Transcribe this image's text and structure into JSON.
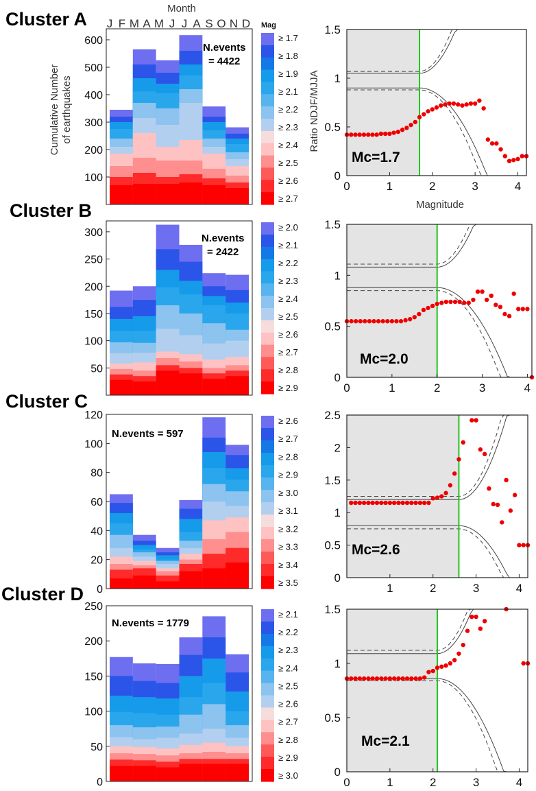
{
  "month_axis_title": "Month",
  "month_letters": [
    "J",
    "F",
    "M",
    "A",
    "M",
    "J",
    "J",
    "A",
    "S",
    "O",
    "N",
    "D"
  ],
  "y_axis_label_line1": "Cumulative Number",
  "y_axis_label_line2": "of earthquakes",
  "ratio_axis_label": "Ratio NDJF/MJJA",
  "magnitude_axis_label": "Magnitude",
  "colorbar_title": "Mag",
  "palette": [
    "#ff0000",
    "#ff2a2a",
    "#ff5a5a",
    "#ff8e8e",
    "#ffc2c2",
    "#f7dcdc",
    "#b3cff0",
    "#8cc3ef",
    "#58b4ee",
    "#2aa7ec",
    "#159bea",
    "#1478e6",
    "#2a55e8",
    "#6e6ef0"
  ],
  "chart_data": [
    {
      "id": "A",
      "type": "bar",
      "stacked": true,
      "title": "Cluster A",
      "categories": [
        "JF",
        "MA",
        "MJ",
        "JA",
        "SO",
        "ND"
      ],
      "n_events_label": "N.events\n= 4422",
      "ylim": [
        0,
        640
      ],
      "yticks": [
        100,
        200,
        300,
        400,
        500,
        600
      ],
      "mag_levels": [
        "≥ 1.7",
        "≥ 1.8",
        "≥ 1.9",
        "≥ 2.1",
        "≥ 2.2",
        "≥ 2.3",
        "≥ 2.4",
        "≥ 2.5",
        "≥ 2.6",
        "≥ 2.7"
      ],
      "cumulative": [
        [
          345,
          565,
          525,
          617,
          357,
          281
        ],
        [
          320,
          510,
          480,
          560,
          320,
          258
        ],
        [
          300,
          460,
          440,
          510,
          300,
          240
        ],
        [
          275,
          412,
          405,
          470,
          270,
          220
        ],
        [
          240,
          370,
          350,
          420,
          240,
          190
        ],
        [
          210,
          315,
          290,
          370,
          210,
          165
        ],
        [
          185,
          260,
          210,
          235,
          185,
          140
        ],
        [
          140,
          170,
          160,
          160,
          130,
          105
        ],
        [
          100,
          115,
          100,
          110,
          95,
          80
        ],
        [
          70,
          75,
          75,
          80,
          70,
          60
        ]
      ],
      "ratio": {
        "mc_label": "Mc=1.7",
        "mc": 1.7,
        "xlim": [
          0,
          4.2
        ],
        "ylim": [
          0,
          1.5
        ],
        "xticks": [
          0,
          1,
          2,
          3,
          4
        ],
        "yticks": [
          0,
          0.5,
          1,
          1.5
        ],
        "conf_upper_solid": 1.05,
        "conf_upper_dashed": 1.07,
        "conf_lower_solid": 0.9,
        "conf_lower_dashed": 0.88,
        "points": [
          [
            0,
            0.42
          ],
          [
            0.1,
            0.42
          ],
          [
            0.2,
            0.42
          ],
          [
            0.3,
            0.42
          ],
          [
            0.4,
            0.42
          ],
          [
            0.5,
            0.42
          ],
          [
            0.6,
            0.42
          ],
          [
            0.7,
            0.42
          ],
          [
            0.8,
            0.43
          ],
          [
            0.9,
            0.43
          ],
          [
            1.0,
            0.43
          ],
          [
            1.1,
            0.44
          ],
          [
            1.2,
            0.45
          ],
          [
            1.3,
            0.47
          ],
          [
            1.4,
            0.49
          ],
          [
            1.5,
            0.52
          ],
          [
            1.6,
            0.55
          ],
          [
            1.7,
            0.6
          ],
          [
            1.8,
            0.63
          ],
          [
            1.9,
            0.66
          ],
          [
            2.0,
            0.68
          ],
          [
            2.1,
            0.7
          ],
          [
            2.2,
            0.72
          ],
          [
            2.3,
            0.73
          ],
          [
            2.4,
            0.74
          ],
          [
            2.5,
            0.74
          ],
          [
            2.6,
            0.73
          ],
          [
            2.7,
            0.72
          ],
          [
            2.8,
            0.73
          ],
          [
            2.9,
            0.74
          ],
          [
            3.0,
            0.74
          ],
          [
            3.1,
            0.77
          ],
          [
            3.2,
            0.69
          ],
          [
            3.3,
            0.37
          ],
          [
            3.4,
            0.33
          ],
          [
            3.5,
            0.33
          ],
          [
            3.6,
            0.27
          ],
          [
            3.7,
            0.2
          ],
          [
            3.8,
            0.15
          ],
          [
            3.9,
            0.16
          ],
          [
            4.0,
            0.17
          ],
          [
            4.1,
            0.2
          ],
          [
            4.2,
            0.2
          ]
        ]
      }
    },
    {
      "id": "B",
      "type": "bar",
      "stacked": true,
      "title": "Cluster B",
      "categories": [
        "JF",
        "MA",
        "MJ",
        "JA",
        "SO",
        "ND"
      ],
      "n_events_label": "N.events\n= 2422",
      "ylim": [
        0,
        320
      ],
      "yticks": [
        50,
        100,
        150,
        200,
        250,
        300
      ],
      "mag_levels": [
        "≥ 2.0",
        "≥ 2.1",
        "≥ 2.2",
        "≥ 2.3",
        "≥ 2.4",
        "≥ 2.5",
        "≥ 2.6",
        "≥ 2.7",
        "≥ 2.8",
        "≥ 2.9"
      ],
      "cumulative": [
        [
          192,
          200,
          313,
          276,
          224,
          221
        ],
        [
          162,
          175,
          268,
          245,
          200,
          193
        ],
        [
          140,
          145,
          230,
          210,
          182,
          170
        ],
        [
          118,
          118,
          198,
          185,
          165,
          150
        ],
        [
          97,
          96,
          165,
          150,
          132,
          120
        ],
        [
          77,
          78,
          122,
          110,
          95,
          100
        ],
        [
          58,
          60,
          80,
          75,
          65,
          70
        ],
        [
          48,
          45,
          68,
          62,
          50,
          55
        ],
        [
          38,
          35,
          55,
          50,
          40,
          45
        ],
        [
          28,
          25,
          45,
          40,
          30,
          35
        ]
      ],
      "ratio": {
        "mc_label": "Mc=2.0",
        "mc": 2.0,
        "xlim": [
          0,
          4.1
        ],
        "ylim": [
          0,
          1.5
        ],
        "xticks": [
          0,
          1,
          2,
          3,
          4
        ],
        "yticks": [
          0,
          0.5,
          1,
          1.5
        ],
        "conf_upper_solid": 1.08,
        "conf_upper_dashed": 1.11,
        "conf_lower_solid": 0.88,
        "conf_lower_dashed": 0.85,
        "points": [
          [
            0,
            0.55
          ],
          [
            0.1,
            0.55
          ],
          [
            0.2,
            0.55
          ],
          [
            0.3,
            0.55
          ],
          [
            0.4,
            0.55
          ],
          [
            0.5,
            0.55
          ],
          [
            0.6,
            0.55
          ],
          [
            0.7,
            0.55
          ],
          [
            0.8,
            0.55
          ],
          [
            0.9,
            0.55
          ],
          [
            1.0,
            0.55
          ],
          [
            1.1,
            0.55
          ],
          [
            1.2,
            0.55
          ],
          [
            1.3,
            0.56
          ],
          [
            1.4,
            0.57
          ],
          [
            1.5,
            0.59
          ],
          [
            1.6,
            0.62
          ],
          [
            1.7,
            0.66
          ],
          [
            1.8,
            0.68
          ],
          [
            1.9,
            0.7
          ],
          [
            2.0,
            0.72
          ],
          [
            2.1,
            0.73
          ],
          [
            2.2,
            0.74
          ],
          [
            2.3,
            0.74
          ],
          [
            2.4,
            0.74
          ],
          [
            2.5,
            0.74
          ],
          [
            2.6,
            0.73
          ],
          [
            2.7,
            0.73
          ],
          [
            2.8,
            0.76
          ],
          [
            2.9,
            0.84
          ],
          [
            3.0,
            0.84
          ],
          [
            3.1,
            0.76
          ],
          [
            3.2,
            0.8
          ],
          [
            3.3,
            0.71
          ],
          [
            3.4,
            0.69
          ],
          [
            3.5,
            0.62
          ],
          [
            3.6,
            0.6
          ],
          [
            3.7,
            0.82
          ],
          [
            3.8,
            0.67
          ],
          [
            3.9,
            0.67
          ],
          [
            4.0,
            0.67
          ],
          [
            4.1,
            0.0
          ]
        ]
      }
    },
    {
      "id": "C",
      "type": "bar",
      "stacked": true,
      "title": "Cluster C",
      "categories": [
        "JF",
        "MA",
        "MJ",
        "JA",
        "SO",
        "ND"
      ],
      "n_events_label": "N.events = 597",
      "ylim": [
        0,
        120
      ],
      "yticks": [
        0,
        20,
        40,
        60,
        80,
        100,
        120
      ],
      "mag_levels": [
        "≥ 2.6",
        "≥ 2.7",
        "≥ 2.8",
        "≥ 2.9",
        "≥ 3.0",
        "≥ 3.1",
        "≥ 3.2",
        "≥ 3.3",
        "≥ 3.4",
        "≥ 3.5"
      ],
      "cumulative": [
        [
          65,
          37,
          28,
          61,
          118,
          99
        ],
        [
          59,
          33,
          25,
          55,
          104,
          92
        ],
        [
          52,
          30,
          23,
          48,
          94,
          83
        ],
        [
          45,
          27,
          20,
          39,
          83,
          75
        ],
        [
          37,
          25,
          19,
          33,
          72,
          67
        ],
        [
          28,
          22,
          17,
          28,
          60,
          57
        ],
        [
          22,
          19,
          14,
          24,
          47,
          49
        ],
        [
          17,
          16,
          12,
          20,
          34,
          39
        ],
        [
          13,
          14,
          9,
          17,
          24,
          28
        ],
        [
          7,
          9,
          5,
          12,
          14,
          18
        ]
      ],
      "ratio": {
        "mc_label": "Mc=2.6",
        "mc": 2.6,
        "xlim": [
          0,
          4.2
        ],
        "ylim": [
          0,
          2.5
        ],
        "xticks": [
          1,
          2,
          3,
          4
        ],
        "yticks": [
          0,
          0.5,
          1,
          1.5,
          2,
          2.5
        ],
        "conf_upper_solid": 1.2,
        "conf_upper_dashed": 1.25,
        "conf_lower_solid": 0.8,
        "conf_lower_dashed": 0.75,
        "points": [
          [
            0.1,
            1.15
          ],
          [
            0.2,
            1.15
          ],
          [
            0.3,
            1.15
          ],
          [
            0.4,
            1.15
          ],
          [
            0.5,
            1.15
          ],
          [
            0.6,
            1.15
          ],
          [
            0.7,
            1.15
          ],
          [
            0.8,
            1.15
          ],
          [
            0.9,
            1.15
          ],
          [
            1.0,
            1.15
          ],
          [
            1.1,
            1.15
          ],
          [
            1.2,
            1.15
          ],
          [
            1.3,
            1.15
          ],
          [
            1.4,
            1.15
          ],
          [
            1.5,
            1.15
          ],
          [
            1.6,
            1.15
          ],
          [
            1.7,
            1.15
          ],
          [
            1.8,
            1.15
          ],
          [
            1.9,
            1.15
          ],
          [
            2.0,
            1.22
          ],
          [
            2.1,
            1.23
          ],
          [
            2.2,
            1.25
          ],
          [
            2.3,
            1.3
          ],
          [
            2.4,
            1.42
          ],
          [
            2.5,
            1.6
          ],
          [
            2.6,
            1.82
          ],
          [
            2.7,
            2.08
          ],
          [
            2.9,
            2.42
          ],
          [
            3.0,
            2.42
          ],
          [
            3.1,
            1.97
          ],
          [
            3.2,
            1.9
          ],
          [
            3.3,
            1.37
          ],
          [
            3.4,
            1.13
          ],
          [
            3.5,
            1.12
          ],
          [
            3.6,
            0.85
          ],
          [
            3.7,
            1.5
          ],
          [
            3.8,
            1.03
          ],
          [
            3.9,
            1.27
          ],
          [
            4.0,
            0.5
          ],
          [
            4.1,
            0.5
          ],
          [
            4.2,
            0.5
          ]
        ]
      }
    },
    {
      "id": "D",
      "type": "bar",
      "stacked": true,
      "title": "Cluster D",
      "categories": [
        "JF",
        "MA",
        "MJ",
        "JA",
        "SO",
        "ND"
      ],
      "n_events_label": "N.events = 1779",
      "ylim": [
        0,
        250
      ],
      "yticks": [
        0,
        50,
        100,
        150,
        200,
        250
      ],
      "mag_levels": [
        "≥ 2.1",
        "≥ 2.2",
        "≥ 2.3",
        "≥ 2.4",
        "≥ 2.5",
        "≥ 2.6",
        "≥ 2.7",
        "≥ 2.8",
        "≥ 2.9",
        "≥ 3.0"
      ],
      "cumulative": [
        [
          177,
          168,
          167,
          205,
          235,
          181
        ],
        [
          150,
          143,
          140,
          180,
          205,
          155
        ],
        [
          122,
          120,
          118,
          150,
          175,
          128
        ],
        [
          99,
          97,
          95,
          120,
          140,
          100
        ],
        [
          80,
          77,
          78,
          95,
          110,
          80
        ],
        [
          63,
          60,
          62,
          68,
          75,
          62
        ],
        [
          50,
          49,
          47,
          52,
          55,
          50
        ],
        [
          40,
          39,
          37,
          40,
          42,
          40
        ],
        [
          31,
          30,
          28,
          32,
          32,
          32
        ],
        [
          22,
          22,
          20,
          25,
          25,
          25
        ]
      ],
      "ratio": {
        "mc_label": "Mc=2.1",
        "mc": 2.1,
        "xlim": [
          0,
          4.2
        ],
        "ylim": [
          0,
          1.5
        ],
        "xticks": [
          0,
          1,
          2,
          3,
          4
        ],
        "yticks": [
          0,
          0.5,
          1,
          1.5
        ],
        "conf_upper_solid": 1.09,
        "conf_upper_dashed": 1.12,
        "conf_lower_solid": 0.86,
        "conf_lower_dashed": 0.84,
        "points": [
          [
            0,
            0.86
          ],
          [
            0.1,
            0.86
          ],
          [
            0.2,
            0.86
          ],
          [
            0.3,
            0.86
          ],
          [
            0.4,
            0.86
          ],
          [
            0.5,
            0.86
          ],
          [
            0.6,
            0.86
          ],
          [
            0.7,
            0.86
          ],
          [
            0.8,
            0.86
          ],
          [
            0.9,
            0.86
          ],
          [
            1.0,
            0.86
          ],
          [
            1.1,
            0.86
          ],
          [
            1.2,
            0.86
          ],
          [
            1.3,
            0.86
          ],
          [
            1.4,
            0.86
          ],
          [
            1.5,
            0.86
          ],
          [
            1.6,
            0.86
          ],
          [
            1.7,
            0.86
          ],
          [
            1.8,
            0.87
          ],
          [
            1.9,
            0.92
          ],
          [
            2.0,
            0.93
          ],
          [
            2.1,
            0.96
          ],
          [
            2.2,
            0.97
          ],
          [
            2.3,
            0.98
          ],
          [
            2.4,
            1.0
          ],
          [
            2.5,
            1.03
          ],
          [
            2.6,
            1.09
          ],
          [
            2.7,
            1.17
          ],
          [
            2.8,
            1.3
          ],
          [
            2.9,
            1.43
          ],
          [
            3.0,
            1.43
          ],
          [
            3.1,
            1.32
          ],
          [
            3.2,
            1.39
          ],
          [
            3.7,
            1.5
          ],
          [
            4.1,
            1.0
          ],
          [
            4.2,
            1.0
          ]
        ]
      }
    }
  ]
}
